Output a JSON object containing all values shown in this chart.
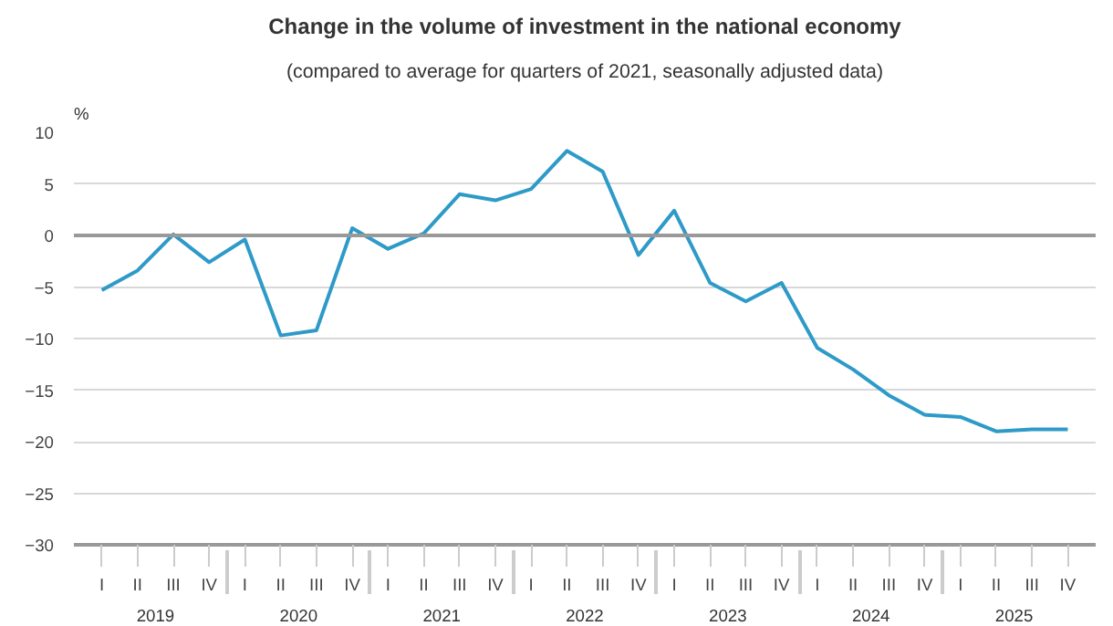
{
  "chart_data": {
    "type": "line",
    "title": "Change in the volume of investment in the national economy",
    "subtitle": "(compared to average for quarters of 2021, seasonally adjusted data)",
    "ylabel": "%",
    "categories": [
      "I",
      "II",
      "III",
      "IV",
      "I",
      "II",
      "III",
      "IV",
      "I",
      "II",
      "III",
      "IV",
      "I",
      "II",
      "III",
      "IV",
      "I",
      "II",
      "III",
      "IV",
      "I",
      "II",
      "III",
      "IV",
      "I",
      "II",
      "III",
      "IV"
    ],
    "annotations": [
      "2019",
      "2020",
      "2021",
      "2022",
      "2023",
      "2024",
      "2025"
    ],
    "series": [
      {
        "color": "#2e9ac8",
        "values": [
          -5.3,
          -3.4,
          0.1,
          -2.6,
          -0.4,
          -9.7,
          -9.2,
          0.7,
          -1.3,
          0.2,
          4.0,
          3.4,
          4.5,
          8.2,
          6.2,
          -1.9,
          2.4,
          -4.6,
          -6.4,
          -4.6,
          -10.9,
          -13.0,
          -15.5,
          -17.4,
          -17.6,
          -19.0,
          -18.8,
          -18.8
        ]
      }
    ],
    "ylim": [
      -30,
      10
    ],
    "yticks": [
      -30,
      -25,
      -20,
      -15,
      -10,
      -5,
      0,
      5,
      10
    ],
    "grid": "y",
    "marker": "none",
    "line_style": "solid",
    "ref_lines": [
      {
        "axis": "y",
        "value": 0,
        "color": "#999999"
      }
    ]
  }
}
